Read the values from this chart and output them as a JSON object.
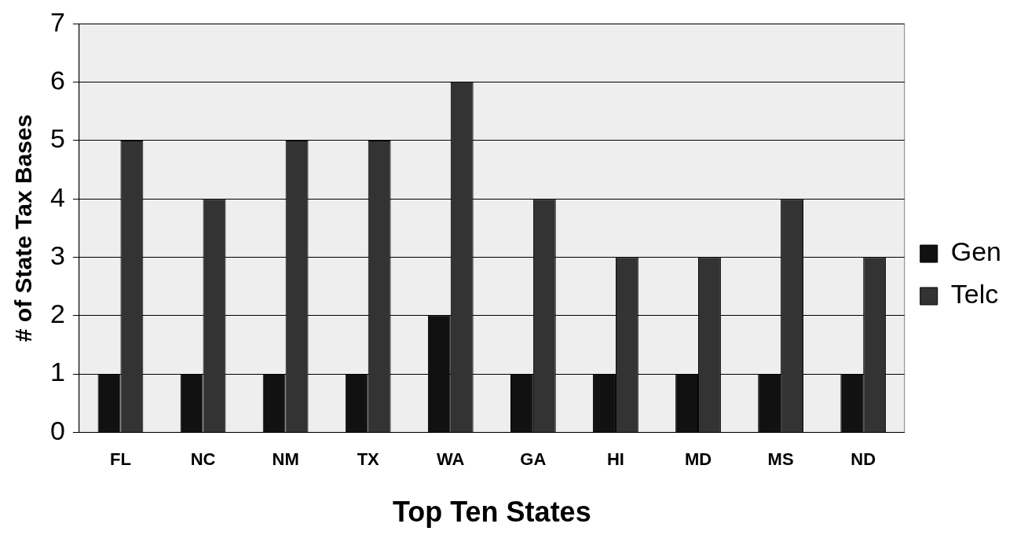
{
  "chart_data": {
    "type": "bar",
    "xlabel": "Top Ten States",
    "ylabel": "# of State Tax Bases",
    "categories": [
      "FL",
      "NC",
      "NM",
      "TX",
      "WA",
      "GA",
      "HI",
      "MD",
      "MS",
      "ND"
    ],
    "series": [
      {
        "name": "Gen",
        "color": "#111111",
        "values": [
          1,
          1,
          1,
          1,
          2,
          1,
          1,
          1,
          1,
          1
        ]
      },
      {
        "name": "Telc",
        "color": "#333333",
        "values": [
          5,
          4,
          5,
          5,
          6,
          4,
          3,
          3,
          4,
          3
        ]
      }
    ],
    "ylim": [
      0,
      7
    ],
    "yticks": [
      0,
      1,
      2,
      3,
      4,
      5,
      6,
      7
    ],
    "grid": "y",
    "legend": "right"
  }
}
